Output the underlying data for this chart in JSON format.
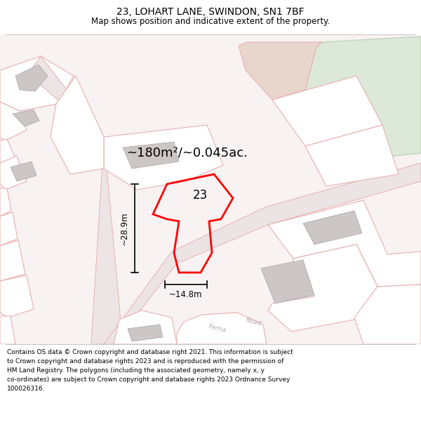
{
  "title": "23, LOHART LANE, SWINDON, SN1 7BF",
  "subtitle": "Map shows position and indicative extent of the property.",
  "footer_lines": [
    "Contains OS data © Crown copyright and database right 2021. This information is subject",
    "to Crown copyright and database rights 2023 and is reproduced with the permission of",
    "HM Land Registry. The polygons (including the associated geometry, namely x, y",
    "co-ordinates) are subject to Crown copyright and database rights 2023 Ordnance Survey",
    "100026316."
  ],
  "area_label": "~180m²/~0.045ac.",
  "number_label": "23",
  "dim_height_label": "~28.9m",
  "dim_width_label": "~14.8m",
  "map_bg": "#f8f2f2",
  "white_bg": "#ffffff",
  "plot_edge_color": "#ff0000",
  "building_fill": "#cdc6c6",
  "building_edge": "#aaa3a3",
  "pink_edge": "#e8b0b0",
  "green_fill": "#dce8d8",
  "green_edge": "#b8d0b4",
  "tan_fill": "#e8d5cc",
  "title_fontsize": 10,
  "subtitle_fontsize": 8.5,
  "area_fontsize": 13,
  "number_fontsize": 12,
  "dim_fontsize": 8.5,
  "footer_fontsize": 6.5,
  "fig_h": 625,
  "fig_w": 600
}
